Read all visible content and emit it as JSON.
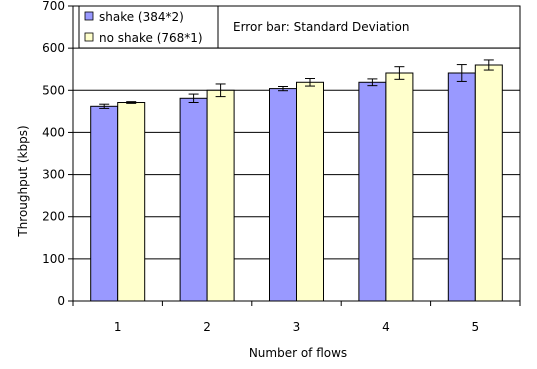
{
  "chart_data": {
    "type": "bar",
    "categories": [
      "1",
      "2",
      "3",
      "4",
      "5"
    ],
    "series": [
      {
        "name": "shake (384*2)",
        "values": [
          462,
          481,
          504,
          519,
          541
        ],
        "error": [
          5,
          10,
          5,
          8,
          20
        ],
        "color": "#9999ff"
      },
      {
        "name": "no shake (768*1)",
        "values": [
          471,
          500,
          519,
          541,
          560
        ],
        "error": [
          2,
          15,
          9,
          15,
          12
        ],
        "color": "#ffffcc"
      }
    ],
    "title": "",
    "annotation": "Error bar: Standard Deviation",
    "xlabel": "Number of flows",
    "ylabel": "Throughput (kbps)",
    "ylim": [
      0,
      700
    ],
    "yticks": [
      0,
      100,
      200,
      300,
      400,
      500,
      600,
      700
    ],
    "grid": true,
    "legend_position": "top-left",
    "colors": {
      "gridline": "#000000",
      "bar_outline": "#000000"
    }
  }
}
